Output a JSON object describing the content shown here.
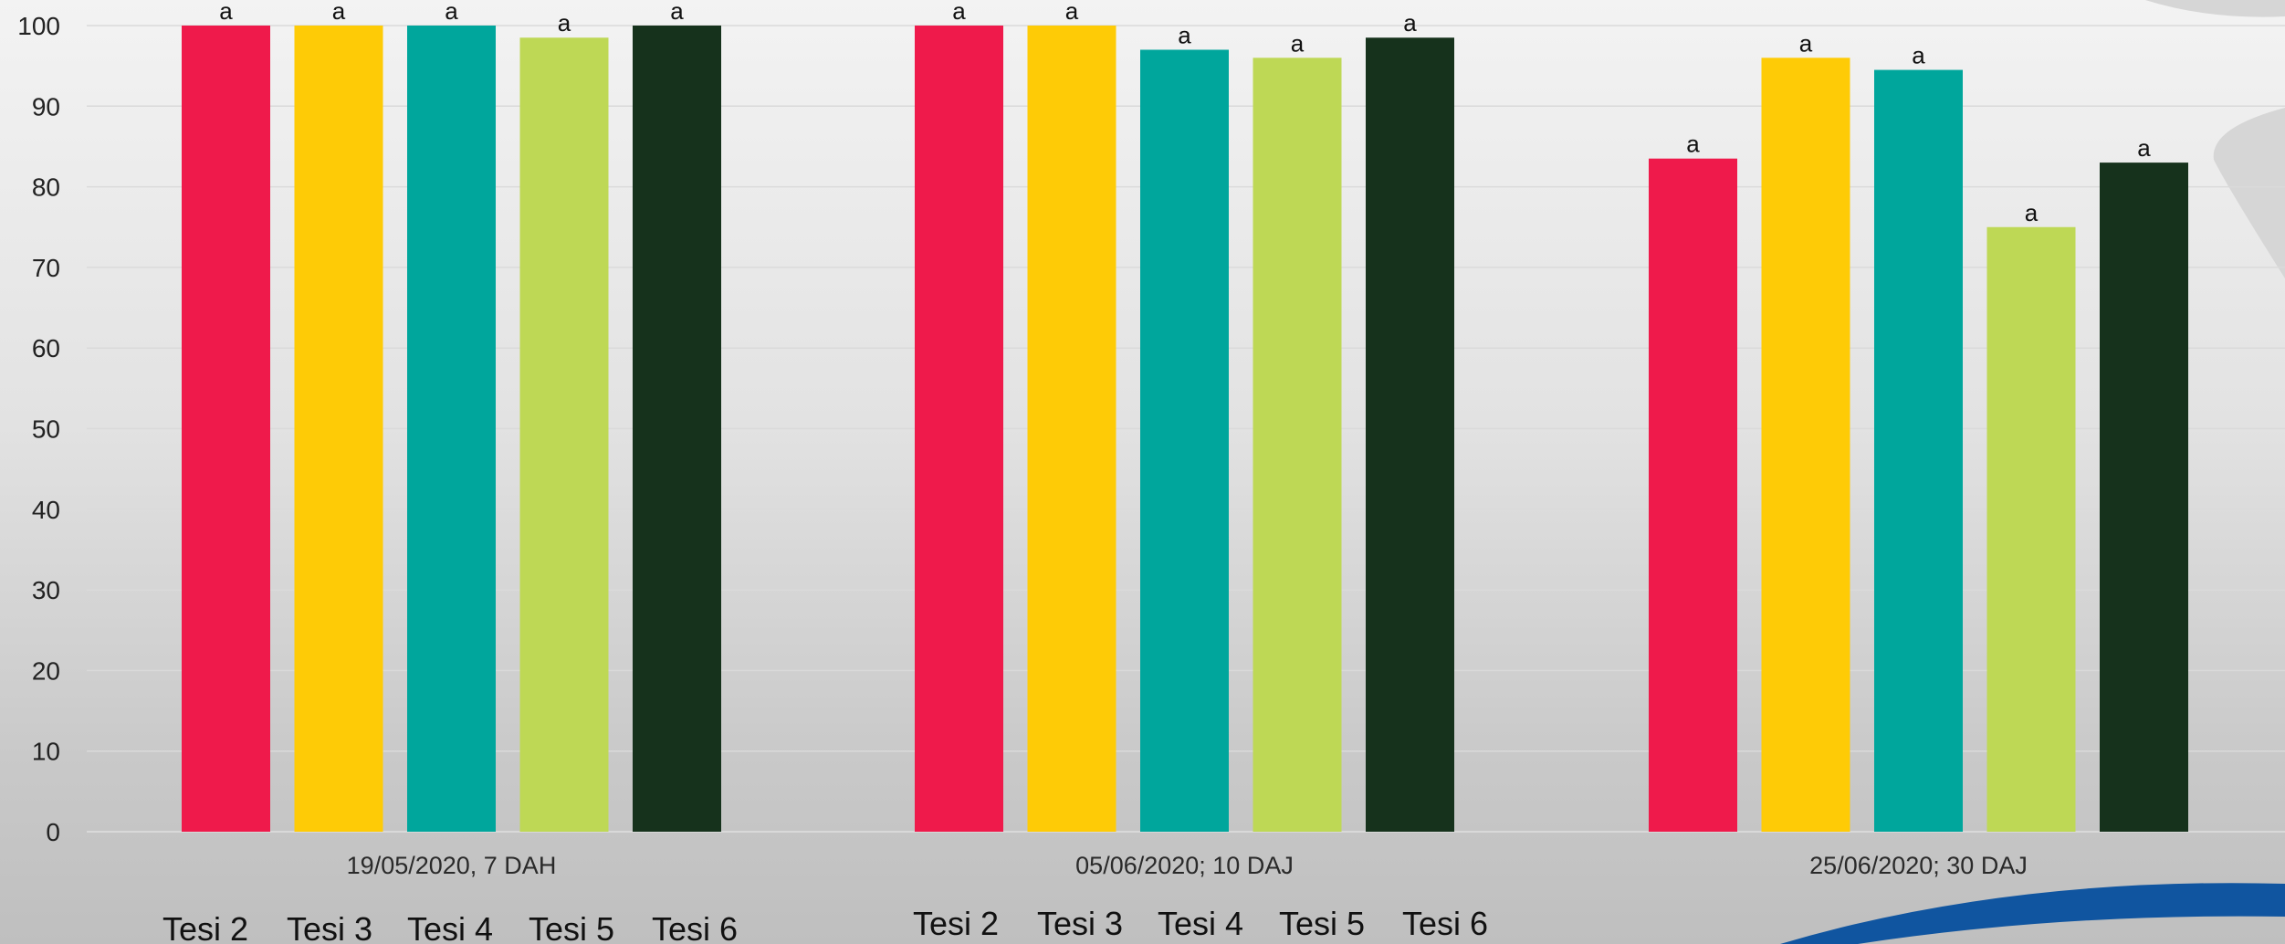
{
  "chart_data": {
    "type": "bar",
    "title": "",
    "xlabel": "",
    "ylabel": "",
    "ylim": [
      0,
      100
    ],
    "yticks": [
      0,
      10,
      20,
      30,
      40,
      50,
      60,
      70,
      80,
      90,
      100
    ],
    "grid": true,
    "categories": [
      "19/05/2020, 7 DAH",
      "05/06/2020; 10 DAJ",
      "25/06/2020; 30 DAJ"
    ],
    "series": [
      {
        "name": "Tesi 2",
        "color": "#ef1a4b",
        "values": [
          100,
          100,
          83.5
        ],
        "labels": [
          "a",
          "a",
          "a"
        ]
      },
      {
        "name": "Tesi 3",
        "color": "#fecb06",
        "values": [
          100,
          100,
          96
        ],
        "labels": [
          "a",
          "a",
          "a"
        ]
      },
      {
        "name": "Tesi 4",
        "color": "#00a69c",
        "values": [
          100,
          97,
          94.5
        ],
        "labels": [
          "a",
          "a",
          "a"
        ]
      },
      {
        "name": "Tesi 5",
        "color": "#bed855",
        "values": [
          98.5,
          96,
          75
        ],
        "labels": [
          "a",
          "a",
          "a"
        ]
      },
      {
        "name": "Tesi 6",
        "color": "#16321c",
        "values": [
          100,
          98.5,
          83
        ],
        "labels": [
          "a",
          "a",
          "a"
        ]
      }
    ],
    "legend_rows": [
      [
        "Tesi 2",
        "Tesi 3",
        "Tesi 4",
        "Tesi 5",
        "Tesi 6"
      ],
      [
        "Tesi 2",
        "Tesi 3",
        "Tesi 4",
        "Tesi 5",
        "Tesi 6"
      ]
    ],
    "legend": "bottom"
  },
  "decor": {
    "swoosh_color": "#1055a0",
    "shape_color": "#d6d6d6"
  }
}
